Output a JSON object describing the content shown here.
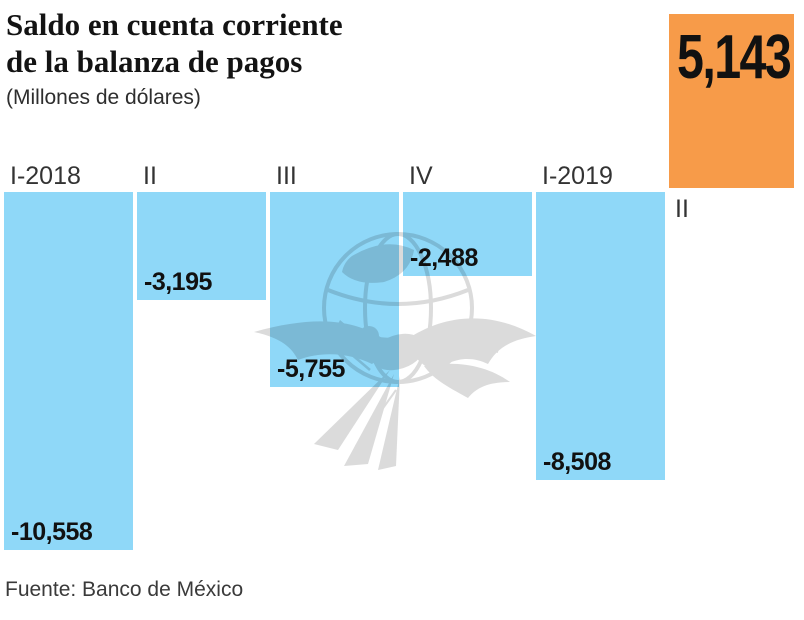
{
  "header": {
    "title_line1": "Saldo en cuenta corriente",
    "title_line2": "de la balanza de pagos",
    "subtitle": "(Millones de dólares)"
  },
  "footer": {
    "source": "Fuente: Banco de México"
  },
  "colors": {
    "negative_bar": "#8fd8f8",
    "positive_bar": "#f79b49",
    "title_text": "#131313",
    "label_text": "#111111",
    "axis_label_text": "#333333"
  },
  "watermark_icon": "el-economista-eagle-globe-watermark",
  "chart_data": {
    "type": "bar",
    "title": "Saldo en cuenta corriente de la balanza de pagos",
    "unit": "Millones de dólares",
    "categories": [
      "I-2018",
      "II",
      "III",
      "IV",
      "I-2019",
      "II"
    ],
    "values": [
      -10558,
      -3195,
      -5755,
      -2488,
      -8508,
      5143
    ],
    "value_labels": [
      "-10,558",
      "-3,195",
      "-5,755",
      "-2,488",
      "-8,508",
      "5,143"
    ],
    "baseline": 0,
    "ylim": [
      -10558,
      5143
    ],
    "grid": false,
    "legend": false,
    "source": "Banco de México"
  }
}
